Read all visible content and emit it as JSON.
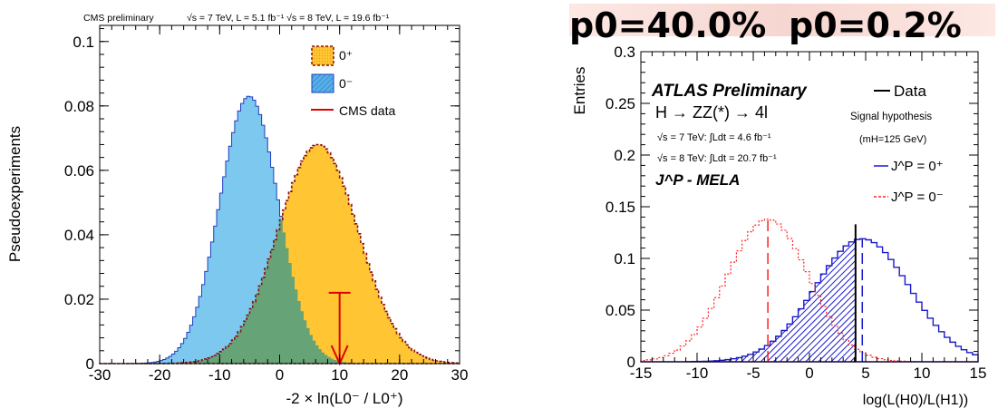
{
  "chart_data": [
    {
      "type": "histogram",
      "header_left": "CMS preliminary",
      "header_right": "√s = 7 TeV, L = 5.1 fb⁻¹  √s = 8 TeV, L = 19.6 fb⁻¹",
      "xlabel": "-2 × ln(L0⁻ / L0⁺)",
      "ylabel": "Pseudoexperiments",
      "xlim": [
        -30,
        30
      ],
      "ylim": [
        0,
        0.105
      ],
      "x_ticks": [
        "-30",
        "-20",
        "-10",
        "0",
        "10",
        "20",
        "30"
      ],
      "y_ticks": [
        "0",
        "0.02",
        "0.04",
        "0.06",
        "0.08",
        "0.1"
      ],
      "legend": [
        "0⁺",
        "0⁻",
        "CMS data"
      ],
      "series": [
        {
          "name": "0⁺",
          "color": "#ffc533",
          "edge": "#8b1010",
          "mean": 6.4,
          "sigma": 6.7,
          "peak": 0.068
        },
        {
          "name": "0⁻",
          "color": "#7cc8ee",
          "edge": "#1f3fbf",
          "mean": -5.1,
          "sigma": 4.9,
          "peak": 0.083
        }
      ],
      "data_value": 10.0,
      "data_marker_color": "#e00000"
    },
    {
      "type": "histogram",
      "banner_left": "p0=40.0%",
      "banner_right": "p0=0.2%",
      "banner_left_color": "#2a2ae6",
      "banner_right_color": "#ff1a1a",
      "title_lines": [
        "ATLAS Preliminary",
        "H → ZZ(*) → 4l",
        "√s = 7 TeV: ∫Ldt = 4.6 fb⁻¹",
        "√s = 8 TeV: ∫Ldt = 20.7 fb⁻¹",
        "J^P - MELA"
      ],
      "xlabel": "log(L(H0)/L(H1))",
      "ylabel": "Entries",
      "xlim": [
        -15,
        15
      ],
      "ylim": [
        0,
        0.3
      ],
      "x_ticks": [
        "-15",
        "-10",
        "-5",
        "0",
        "5",
        "10",
        "15"
      ],
      "y_ticks": [
        "0",
        "0.05",
        "0.1",
        "0.15",
        "0.2",
        "0.25",
        "0.3"
      ],
      "legend": [
        "Data",
        "Signal hypothesis",
        "(mH=125 GeV)",
        "J^P = 0⁺",
        "J^P = 0⁻"
      ],
      "series": [
        {
          "name": "J^P = 0⁺",
          "color": "#1a1acc",
          "mean": 4.7,
          "sigma": 4.2,
          "peak": 0.119
        },
        {
          "name": "J^P = 0⁻",
          "color": "#ff2020",
          "mean": -3.7,
          "sigma": 3.6,
          "peak": 0.138
        }
      ],
      "data_value": 4.1
    }
  ]
}
